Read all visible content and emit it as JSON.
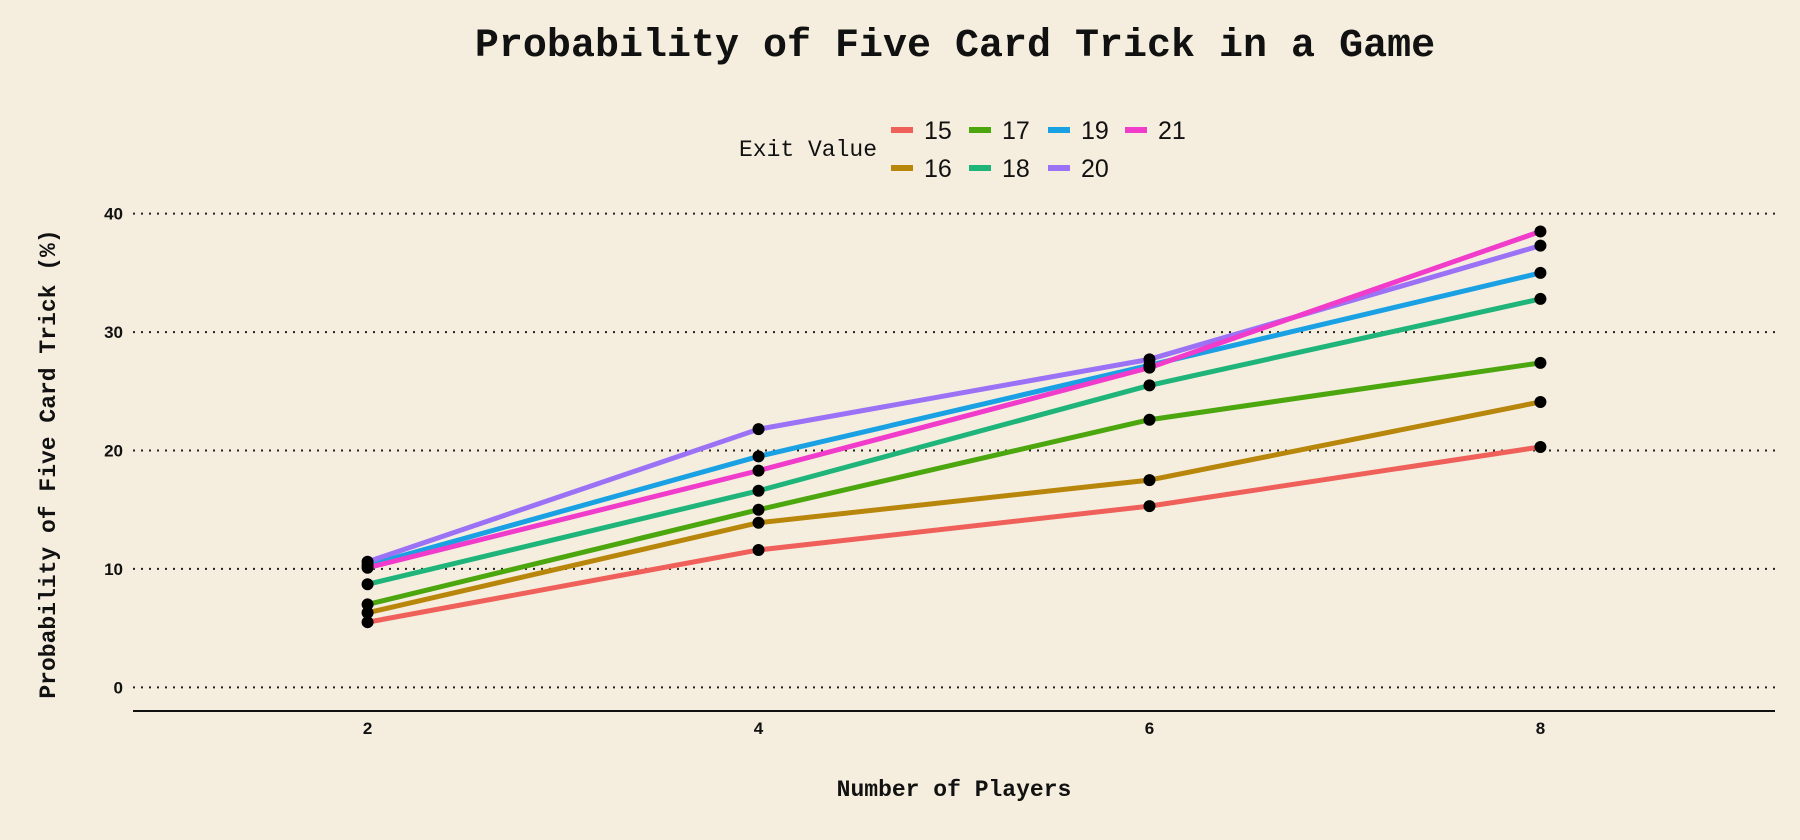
{
  "chart_data": {
    "type": "line",
    "title": "Probability of Five Card Trick in a Game",
    "xlabel": "Number of Players",
    "ylabel": "Probability of Five Card Trick (%)",
    "x": [
      2,
      4,
      6,
      8
    ],
    "xticks": [
      "2",
      "4",
      "6",
      "8"
    ],
    "yticks": [
      "0",
      "10",
      "20",
      "30",
      "40"
    ],
    "xlim": [
      0.8,
      9.2
    ],
    "ylim": [
      -2,
      42
    ],
    "grid": "horizontal dotted",
    "legend": {
      "title": "Exit Value",
      "placement": "top-center"
    },
    "series": [
      {
        "name": "15",
        "color": "#F0605A",
        "values": [
          5.5,
          11.6,
          15.3,
          20.3
        ]
      },
      {
        "name": "16",
        "color": "#B8860B",
        "values": [
          6.3,
          13.9,
          17.5,
          24.1
        ]
      },
      {
        "name": "17",
        "color": "#4CA60E",
        "values": [
          7.0,
          15.0,
          22.6,
          27.4
        ]
      },
      {
        "name": "18",
        "color": "#1FB47A",
        "values": [
          8.7,
          16.6,
          25.5,
          32.8
        ]
      },
      {
        "name": "19",
        "color": "#1AA1E3",
        "values": [
          10.3,
          19.5,
          27.2,
          35.0
        ]
      },
      {
        "name": "20",
        "color": "#9B72F5",
        "values": [
          10.6,
          21.8,
          27.7,
          37.3
        ]
      },
      {
        "name": "21",
        "color": "#F03BCB",
        "values": [
          10.1,
          18.3,
          27.0,
          38.5
        ]
      }
    ],
    "point_color": "#000000"
  }
}
